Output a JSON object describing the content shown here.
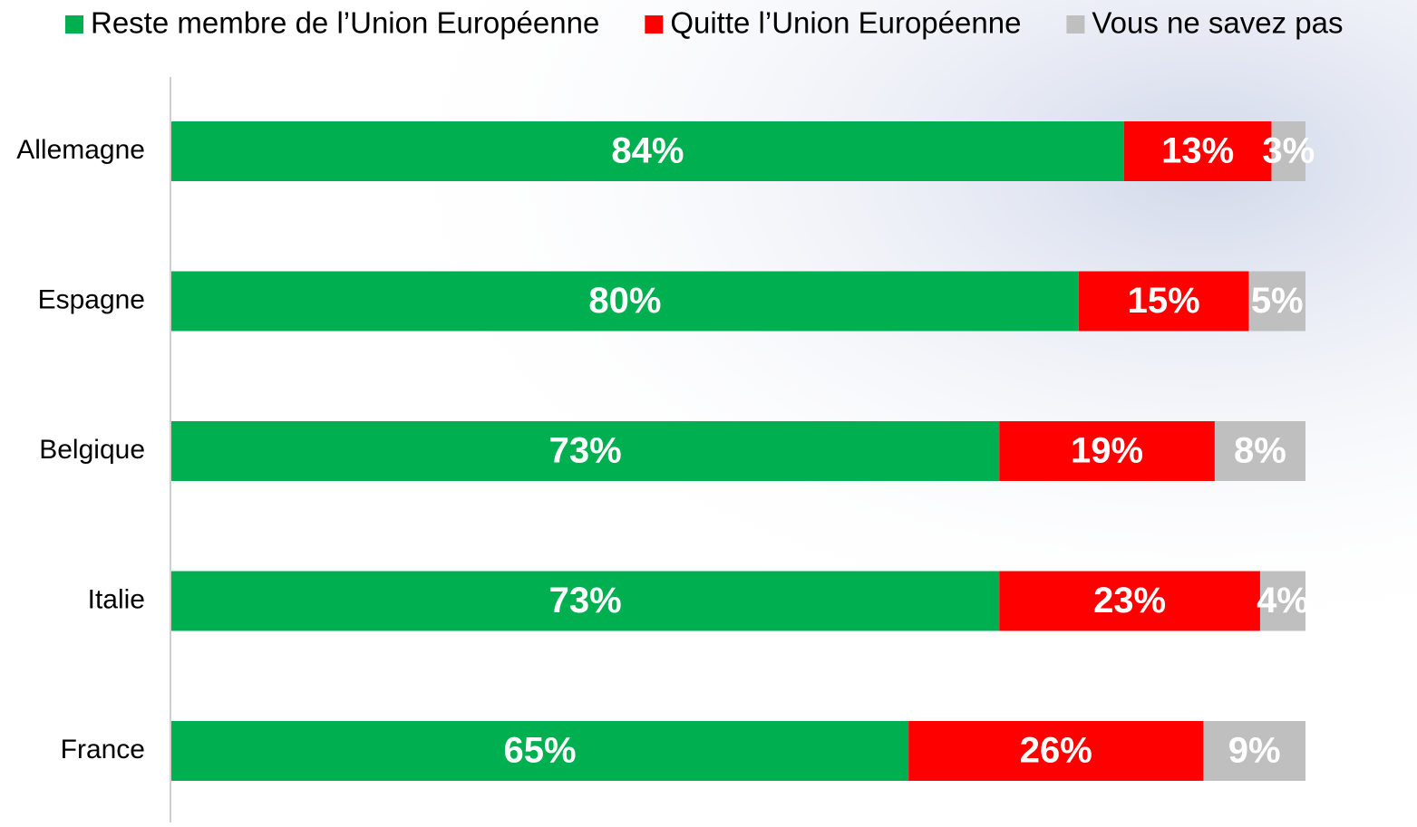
{
  "chart_data": {
    "type": "bar",
    "orientation": "horizontal",
    "stacked": true,
    "categories": [
      "Allemagne",
      "Espagne",
      "Belgique",
      "Italie",
      "France"
    ],
    "xlim": [
      0,
      100
    ],
    "legend": "top",
    "series": [
      {
        "name": "Reste membre de l’Union Européenne",
        "color": "#00b050",
        "values": [
          84,
          80,
          73,
          73,
          65
        ],
        "value_labels": [
          "84%",
          "80%",
          "73%",
          "73%",
          "65%"
        ]
      },
      {
        "name": "Quitte l’Union Européenne",
        "color": "#ff0000",
        "values": [
          13,
          15,
          19,
          23,
          26
        ],
        "value_labels": [
          "13%",
          "15%",
          "19%",
          "23%",
          "26%"
        ]
      },
      {
        "name": "Vous ne savez pas",
        "color": "#bfbfbf",
        "values": [
          3,
          5,
          8,
          4,
          9
        ],
        "value_labels": [
          "3%",
          "5%",
          "8%",
          "4%",
          "9%"
        ]
      }
    ]
  }
}
